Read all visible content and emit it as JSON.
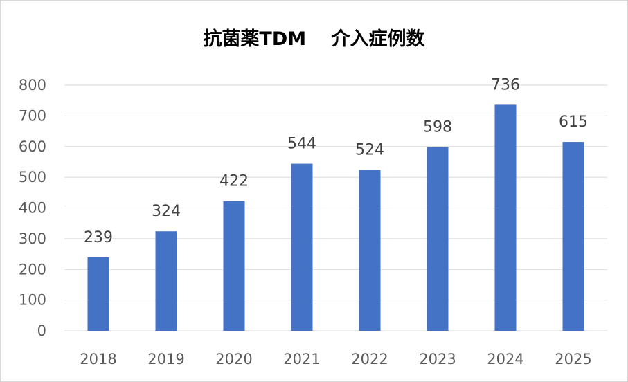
{
  "chart_data": {
    "type": "bar",
    "title": "抗菌薬TDM　 介入症例数",
    "xlabel": "",
    "ylabel": "",
    "categories": [
      "2018",
      "2019",
      "2020",
      "2021",
      "2022",
      "2023",
      "2024",
      "2025"
    ],
    "series": [
      {
        "values": [
          239,
          324,
          422,
          544,
          524,
          598,
          736,
          615
        ]
      }
    ],
    "ylim": [
      0,
      800
    ],
    "yticks": [
      "0",
      "100",
      "200",
      "300",
      "400",
      "500",
      "600",
      "700",
      "800"
    ],
    "grid": true,
    "legend": "none",
    "data_labels": true,
    "bar_color": "#4472C4",
    "grid_color": "#d9d9d9"
  }
}
